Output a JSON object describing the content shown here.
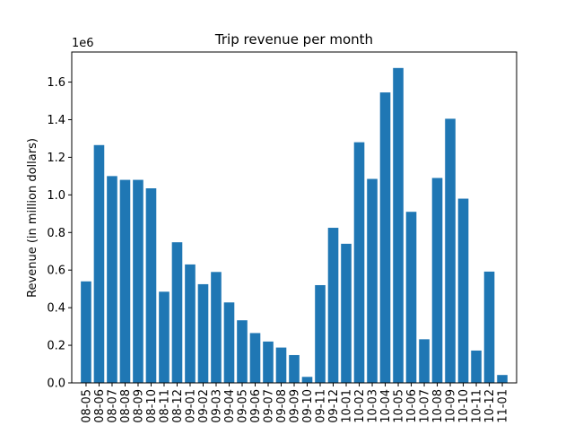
{
  "chart_data": {
    "type": "bar",
    "title": "Trip revenue per month",
    "xlabel": "",
    "ylabel": "Revenue (in million dollars)",
    "y_scale_label": "1e6",
    "categories": [
      "08-05",
      "08-06",
      "08-07",
      "08-08",
      "08-09",
      "08-10",
      "08-11",
      "08-12",
      "09-01",
      "09-02",
      "09-03",
      "09-04",
      "09-05",
      "09-06",
      "09-07",
      "09-08",
      "09-09",
      "09-10",
      "09-11",
      "09-12",
      "10-01",
      "10-02",
      "10-03",
      "10-04",
      "10-05",
      "10-06",
      "10-07",
      "10-08",
      "10-09",
      "10-10",
      "10-11",
      "10-12",
      "11-01"
    ],
    "values": [
      540000,
      1265000,
      1100000,
      1080000,
      1080000,
      1035000,
      485000,
      748000,
      630000,
      525000,
      590000,
      428000,
      333000,
      265000,
      220000,
      188000,
      148000,
      32000,
      520000,
      825000,
      740000,
      1280000,
      1085000,
      1545000,
      1675000,
      910000,
      232000,
      1090000,
      1405000,
      980000,
      172000,
      592000,
      42000
    ],
    "ylim": [
      0,
      1760000
    ],
    "yticks": [
      0,
      200000,
      400000,
      600000,
      800000,
      1000000,
      1200000,
      1400000,
      1600000
    ],
    "ytick_labels": [
      "0.0",
      "0.2",
      "0.4",
      "0.6",
      "0.8",
      "1.0",
      "1.2",
      "1.4",
      "1.6"
    ],
    "bar_color": "#1f77b4",
    "grid": false,
    "legend": "none"
  }
}
